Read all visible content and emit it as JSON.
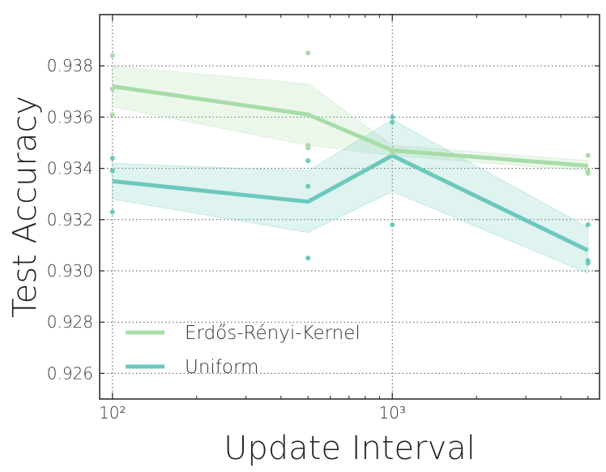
{
  "chart_data": {
    "type": "line",
    "xlabel": "Update Interval",
    "ylabel": "Test Accuracy",
    "x_scale": "log",
    "xlim": [
      90,
      5500
    ],
    "ylim": [
      0.925,
      0.94
    ],
    "grid": true,
    "legend_position": "lower-left",
    "x_ticks": [
      {
        "value": 100,
        "label": "10²"
      },
      {
        "value": 1000,
        "label": "10³"
      }
    ],
    "y_ticks": [
      0.926,
      0.928,
      0.93,
      0.932,
      0.934,
      0.936,
      0.938
    ],
    "y_tick_labels": [
      "0.926",
      "0.928",
      "0.930",
      "0.932",
      "0.934",
      "0.936",
      "0.938"
    ],
    "x": [
      100,
      500,
      1000,
      5000
    ],
    "series": [
      {
        "name": "Erdős-Rényi-Kernel",
        "color": "#a8dca8",
        "values": [
          0.9372,
          0.9361,
          0.9347,
          0.9341
        ],
        "band_upper": [
          0.938,
          0.9373,
          0.9349,
          0.9343
        ],
        "band_lower": [
          0.9364,
          0.9349,
          0.9345,
          0.9339
        ],
        "points": [
          [
            100,
            0.9384
          ],
          [
            100,
            0.9371
          ],
          [
            100,
            0.9361
          ],
          [
            500,
            0.9385
          ],
          [
            500,
            0.9349
          ],
          [
            500,
            0.9348
          ],
          [
            1000,
            0.9347
          ],
          [
            1000,
            0.9346
          ],
          [
            5000,
            0.9345
          ],
          [
            5000,
            0.9339
          ],
          [
            5000,
            0.9338
          ]
        ]
      },
      {
        "name": "Uniform",
        "color": "#6cc8bd",
        "values": [
          0.9335,
          0.9327,
          0.9345,
          0.9308
        ],
        "band_upper": [
          0.9342,
          0.9339,
          0.9359,
          0.9317
        ],
        "band_lower": [
          0.9328,
          0.9315,
          0.9331,
          0.9299
        ],
        "points": [
          [
            100,
            0.9344
          ],
          [
            100,
            0.9339
          ],
          [
            100,
            0.9323
          ],
          [
            500,
            0.9343
          ],
          [
            500,
            0.9333
          ],
          [
            500,
            0.9305
          ],
          [
            1000,
            0.936
          ],
          [
            1000,
            0.9358
          ],
          [
            1000,
            0.9318
          ],
          [
            5000,
            0.9318
          ],
          [
            5000,
            0.9304
          ],
          [
            5000,
            0.9303
          ]
        ]
      }
    ]
  }
}
